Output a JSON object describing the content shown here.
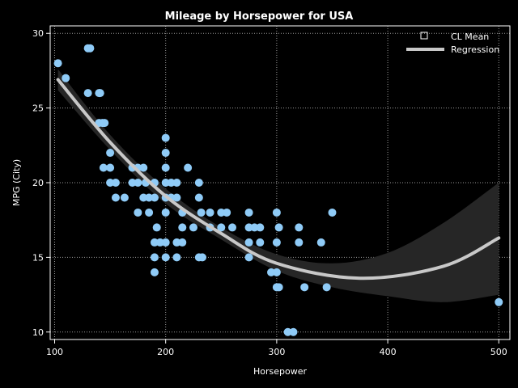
{
  "chart_data": {
    "type": "scatter",
    "title": "Mileage by Horsepower for USA",
    "xlabel": "Horsepower",
    "ylabel": "MPG (City)",
    "xlim": [
      96,
      510
    ],
    "ylim": [
      9.5,
      30.5
    ],
    "xticks": [
      100,
      200,
      300,
      400,
      500
    ],
    "yticks": [
      10,
      15,
      20,
      25,
      30
    ],
    "grid": true,
    "legend_position": "top-right",
    "legend": [
      {
        "label": "CL Mean",
        "symbol": "square"
      },
      {
        "label": "Regression",
        "symbol": "line"
      }
    ],
    "colors": {
      "background": "#000000",
      "points": "#8fcbf7",
      "regression": "#c8c8c8",
      "confidence_band": "#262626",
      "grid": "#9a9a9a",
      "frame": "#ffffff"
    },
    "regression": {
      "form": "quadratic",
      "points": [
        [
          103,
          26.9
        ],
        [
          150,
          22.7
        ],
        [
          200,
          19.1
        ],
        [
          250,
          16.6
        ],
        [
          300,
          14.6
        ],
        [
          375,
          13.6
        ],
        [
          450,
          14.4
        ],
        [
          500,
          16.3
        ]
      ]
    },
    "confidence_band": {
      "upper": [
        [
          103,
          27.6
        ],
        [
          150,
          23.2
        ],
        [
          200,
          19.6
        ],
        [
          250,
          17.0
        ],
        [
          300,
          15.2
        ],
        [
          350,
          14.6
        ],
        [
          400,
          15.3
        ],
        [
          450,
          17.3
        ],
        [
          500,
          20.0
        ]
      ],
      "lower": [
        [
          103,
          26.2
        ],
        [
          150,
          22.2
        ],
        [
          200,
          18.6
        ],
        [
          250,
          16.2
        ],
        [
          300,
          14.1
        ],
        [
          350,
          13.0
        ],
        [
          400,
          12.4
        ],
        [
          450,
          12.0
        ],
        [
          500,
          12.5
        ]
      ]
    },
    "series": [
      {
        "points": [
          [
            103,
            28
          ],
          [
            110,
            27
          ],
          [
            130,
            29
          ],
          [
            132,
            29
          ],
          [
            130,
            26
          ],
          [
            140,
            26
          ],
          [
            141,
            26
          ],
          [
            140,
            24
          ],
          [
            143,
            24
          ],
          [
            145,
            24
          ],
          [
            144,
            21
          ],
          [
            150,
            21
          ],
          [
            150,
            20
          ],
          [
            155,
            20
          ],
          [
            155,
            19
          ],
          [
            150,
            22
          ],
          [
            163,
            19
          ],
          [
            170,
            21
          ],
          [
            175,
            21
          ],
          [
            180,
            21
          ],
          [
            170,
            20
          ],
          [
            175,
            20
          ],
          [
            182,
            20
          ],
          [
            185,
            19
          ],
          [
            180,
            19
          ],
          [
            190,
            19
          ],
          [
            175,
            18
          ],
          [
            185,
            18
          ],
          [
            190,
            20
          ],
          [
            190,
            16
          ],
          [
            195,
            16
          ],
          [
            200,
            16
          ],
          [
            190,
            15
          ],
          [
            192,
            17
          ],
          [
            190,
            14
          ],
          [
            200,
            15
          ],
          [
            200,
            23
          ],
          [
            200,
            22
          ],
          [
            200,
            21
          ],
          [
            200,
            20
          ],
          [
            205,
            20
          ],
          [
            210,
            20
          ],
          [
            200,
            19
          ],
          [
            205,
            19
          ],
          [
            210,
            19
          ],
          [
            210,
            16
          ],
          [
            215,
            16
          ],
          [
            210,
            15
          ],
          [
            200,
            18
          ],
          [
            215,
            18
          ],
          [
            215,
            17
          ],
          [
            220,
            21
          ],
          [
            225,
            17
          ],
          [
            230,
            20
          ],
          [
            230,
            19
          ],
          [
            232,
            18
          ],
          [
            230,
            15
          ],
          [
            233,
            15
          ],
          [
            240,
            17
          ],
          [
            240,
            18
          ],
          [
            250,
            18
          ],
          [
            255,
            18
          ],
          [
            250,
            17
          ],
          [
            260,
            17
          ],
          [
            275,
            18
          ],
          [
            275,
            17
          ],
          [
            280,
            17
          ],
          [
            285,
            17
          ],
          [
            275,
            16
          ],
          [
            285,
            16
          ],
          [
            275,
            15
          ],
          [
            295,
            14
          ],
          [
            300,
            14
          ],
          [
            300,
            18
          ],
          [
            300,
            16
          ],
          [
            302,
            17
          ],
          [
            300,
            13
          ],
          [
            302,
            13
          ],
          [
            310,
            10
          ],
          [
            315,
            10
          ],
          [
            320,
            17
          ],
          [
            320,
            16
          ],
          [
            325,
            13
          ],
          [
            340,
            16
          ],
          [
            345,
            13
          ],
          [
            350,
            18
          ],
          [
            500,
            12
          ]
        ]
      }
    ]
  }
}
